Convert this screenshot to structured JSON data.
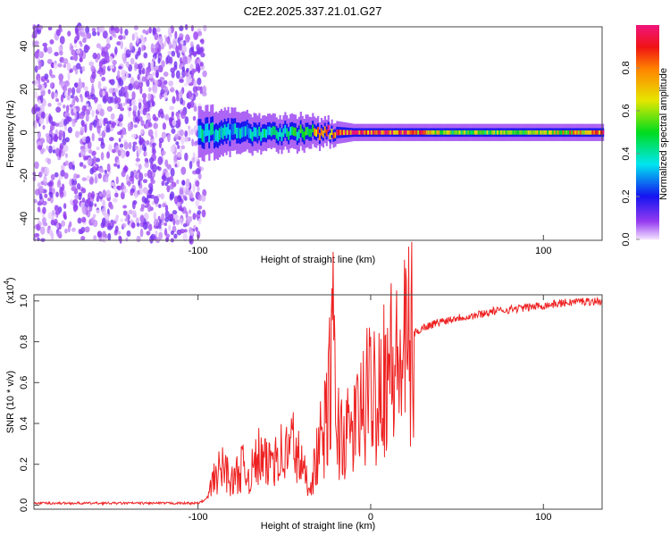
{
  "chart_data": [
    {
      "type": "heatmap",
      "title": "C2E2.2025.337.21.01.G27",
      "xlabel": "Height of straight line (km)",
      "ylabel": "Frequency (Hz)",
      "xlim": [
        -195,
        134
      ],
      "ylim": [
        -50,
        49
      ],
      "xticks": [
        -100,
        100
      ],
      "xtick_labels": [
        "-100",
        "100"
      ],
      "yticks": [
        40,
        20,
        0,
        -20,
        -40
      ],
      "ytick_labels": [
        "40",
        "20",
        "0",
        "-20",
        "-40"
      ],
      "colorbar": {
        "label": "Normalized spectral amplitude",
        "range": [
          0,
          1
        ],
        "ticks": [
          "0.0",
          "0.2",
          "0.4",
          "0.6",
          "0.8"
        ]
      },
      "noise_region_km": [
        -195,
        -100
      ],
      "band": {
        "center_hz": 0,
        "points_km": [
          -100,
          -80,
          -60,
          -40,
          -25,
          -10,
          0,
          20,
          50,
          100,
          134
        ],
        "halfwidth_hz": [
          6,
          5,
          4,
          4,
          3,
          2,
          2,
          2,
          2,
          2,
          2
        ],
        "amplitude": [
          0.4,
          0.35,
          0.4,
          0.5,
          0.9,
          0.9,
          0.9,
          0.95,
          0.55,
          0.6,
          0.9
        ]
      }
    },
    {
      "type": "line",
      "xlabel": "Height of straight line (km)",
      "ylabel": "SNR (10 * v/v)",
      "yscale_label": "(x10",
      "yscale_exp": "4",
      "yscale_close": ")",
      "xlim": [
        -195,
        134
      ],
      "ylim": [
        -0.02,
        1.03
      ],
      "xticks": [
        -100,
        0,
        100
      ],
      "xtick_labels": [
        "-100",
        "0",
        "100"
      ],
      "yticks": [
        0,
        0.2,
        0.4,
        0.6,
        0.8,
        1.0
      ],
      "ytick_labels": [
        "0.0",
        "0.2",
        "0.4",
        "0.6",
        "0.8",
        "1.0"
      ],
      "series": [
        {
          "name": "SNR",
          "color": "#ee2222",
          "x": [
            -195,
            -180,
            -160,
            -140,
            -120,
            -100,
            -95,
            -90,
            -85,
            -80,
            -75,
            -70,
            -65,
            -60,
            -55,
            -50,
            -45,
            -40,
            -35,
            -30,
            -25,
            -22,
            -20,
            -15,
            -10,
            -5,
            0,
            5,
            10,
            15,
            20,
            25,
            30,
            40,
            50,
            60,
            70,
            80,
            90,
            100,
            110,
            120,
            134
          ],
          "y": [
            0.01,
            0.01,
            0.01,
            0.01,
            0.01,
            0.01,
            0.03,
            0.15,
            0.2,
            0.12,
            0.2,
            0.15,
            0.25,
            0.2,
            0.3,
            0.25,
            0.33,
            0.2,
            0.1,
            0.3,
            0.45,
            0.9,
            0.4,
            0.35,
            0.4,
            0.5,
            0.6,
            0.65,
            0.75,
            0.7,
            0.8,
            0.84,
            0.87,
            0.9,
            0.92,
            0.93,
            0.95,
            0.96,
            0.97,
            0.98,
            0.99,
            1.0,
            1.0
          ]
        }
      ]
    }
  ]
}
